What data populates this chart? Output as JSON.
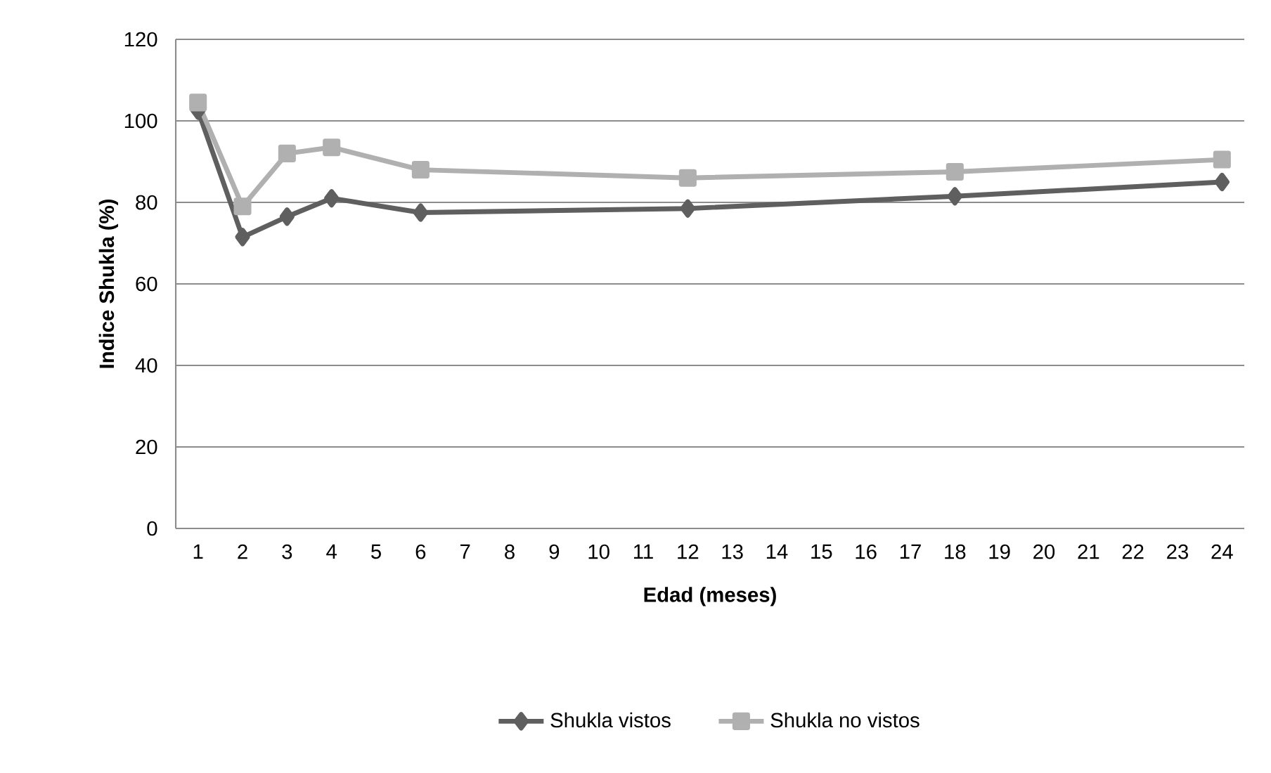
{
  "chart_data": {
    "type": "line",
    "xlabel": "Edad (meses)",
    "ylabel": "Indice Shukla (%)",
    "x": [
      1,
      2,
      3,
      4,
      6,
      12,
      18,
      24
    ],
    "series": [
      {
        "name": "Shukla vistos",
        "color": "#5f5f5f",
        "marker": "diamond",
        "values": [
          102.5,
          71.5,
          76.5,
          81,
          77.5,
          78.5,
          81.5,
          85
        ]
      },
      {
        "name": "Shukla no vistos",
        "color": "#b0b0b0",
        "marker": "square",
        "values": [
          104.5,
          79,
          92,
          93.5,
          88,
          86,
          87.5,
          90.5
        ]
      }
    ],
    "xlim": [
      0.5,
      24.5
    ],
    "xticks": [
      1,
      2,
      3,
      4,
      5,
      6,
      7,
      8,
      9,
      10,
      11,
      12,
      13,
      14,
      15,
      16,
      17,
      18,
      19,
      20,
      21,
      22,
      23,
      24
    ],
    "ylim": [
      0,
      120
    ],
    "yticks": [
      0,
      20,
      40,
      60,
      80,
      100,
      120
    ],
    "grid": "y",
    "legend": "bottom",
    "line_style": "solid"
  }
}
